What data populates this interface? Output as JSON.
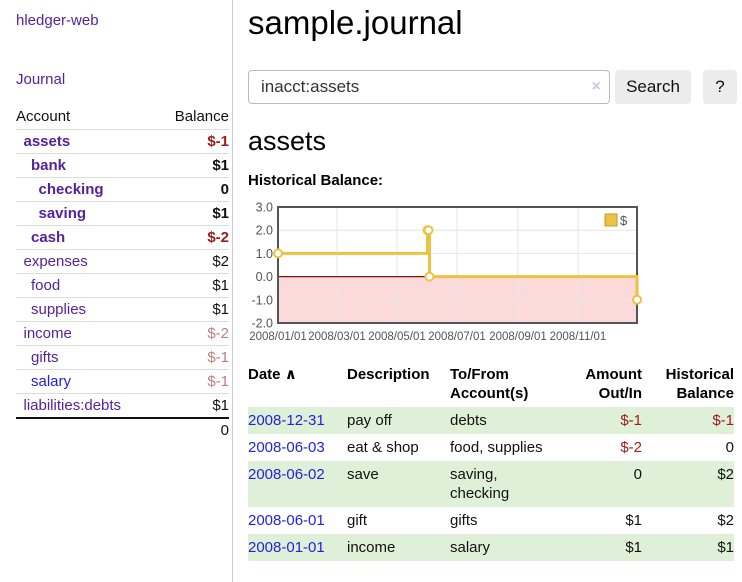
{
  "app": {
    "brand": "hledger-web",
    "nav_journal": "Journal"
  },
  "sidebar": {
    "header": {
      "account": "Account",
      "balance": "Balance"
    },
    "accounts": [
      {
        "name": "assets",
        "balance": "$-1",
        "depth": 1,
        "bold": true
      },
      {
        "name": "bank",
        "balance": "$1",
        "depth": 2,
        "bold": true
      },
      {
        "name": "checking",
        "balance": "0",
        "depth": 3,
        "bold": true
      },
      {
        "name": "saving",
        "balance": "$1",
        "depth": 3,
        "bold": true
      },
      {
        "name": "cash",
        "balance": "$-2",
        "depth": 2,
        "bold": true
      },
      {
        "name": "expenses",
        "balance": "$2",
        "depth": 1,
        "bold": false
      },
      {
        "name": "food",
        "balance": "$1",
        "depth": 2,
        "bold": false
      },
      {
        "name": "supplies",
        "balance": "$1",
        "depth": 2,
        "bold": false
      },
      {
        "name": "income",
        "balance": "$-2",
        "depth": 1,
        "bold": false
      },
      {
        "name": "gifts",
        "balance": "$-1",
        "depth": 2,
        "bold": false
      },
      {
        "name": "salary",
        "balance": "$-1",
        "depth": 2,
        "bold": false,
        "unvisited": true
      },
      {
        "name": "liabilities:debts",
        "balance": "$1",
        "depth": 1,
        "bold": false
      }
    ],
    "total": "0"
  },
  "main": {
    "title": "sample.journal",
    "search": {
      "value": "inacct:assets",
      "clear_icon": "×",
      "button": "Search",
      "help": "?"
    },
    "account_heading": "assets",
    "chart_label": "Historical Balance:"
  },
  "chart_data": {
    "type": "line",
    "step": true,
    "title": "Historical Balance of assets",
    "legend": [
      {
        "label": "$",
        "color": "#EDC240"
      }
    ],
    "legend_position": "top-right",
    "series": [
      {
        "name": "$",
        "color": "#EDC240",
        "points": [
          {
            "date": "2008-01-01",
            "value": 1
          },
          {
            "date": "2008-06-01",
            "value": 2
          },
          {
            "date": "2008-06-02",
            "value": 2
          },
          {
            "date": "2008-06-03",
            "value": 0
          },
          {
            "date": "2008-12-31",
            "value": -1
          }
        ]
      }
    ],
    "x_range": [
      "2008-01-01",
      "2008-12-31"
    ],
    "x_ticks": [
      {
        "date": "2008-01-01",
        "label": "2008/01/01"
      },
      {
        "date": "2008-03-01",
        "label": "2008/03/01"
      },
      {
        "date": "2008-05-01",
        "label": "2008/05/01"
      },
      {
        "date": "2008-07-01",
        "label": "2008/07/01"
      },
      {
        "date": "2008-09-01",
        "label": "2008/09/01"
      },
      {
        "date": "2008-11-01",
        "label": "2008/11/01"
      }
    ],
    "y_ticks": [
      3.0,
      2.0,
      1.0,
      0.0,
      -1.0,
      -2.0
    ],
    "ylim": [
      -2,
      3
    ],
    "grid": true,
    "colors": {
      "grid": "#e6e6e6",
      "border": "#545454",
      "axis_label": "#545454",
      "negative_region": "#fcdada",
      "zero_line": "#8f0c0c",
      "marker_fill": "#ffffff",
      "legend_swatch_border": "#bf9b30"
    }
  },
  "register": {
    "columns": {
      "date": "Date",
      "description": "Description",
      "accounts": "To/From Account(s)",
      "amount": "Amount Out/In",
      "balance": "Historical Balance"
    },
    "sort_icon": "∧",
    "rows": [
      {
        "date": "2008-12-31",
        "description": "pay off",
        "accounts": "debts",
        "amount": "$-1",
        "balance": "$-1"
      },
      {
        "date": "2008-06-03",
        "description": "eat & shop",
        "accounts": "food, supplies",
        "amount": "$-2",
        "balance": "0"
      },
      {
        "date": "2008-06-02",
        "description": "save",
        "accounts": "saving, checking",
        "amount": "0",
        "balance": "$2"
      },
      {
        "date": "2008-06-01",
        "description": "gift",
        "accounts": "gifts",
        "amount": "$1",
        "balance": "$2"
      },
      {
        "date": "2008-01-01",
        "description": "income",
        "accounts": "salary",
        "amount": "$1",
        "balance": "$1"
      }
    ]
  }
}
